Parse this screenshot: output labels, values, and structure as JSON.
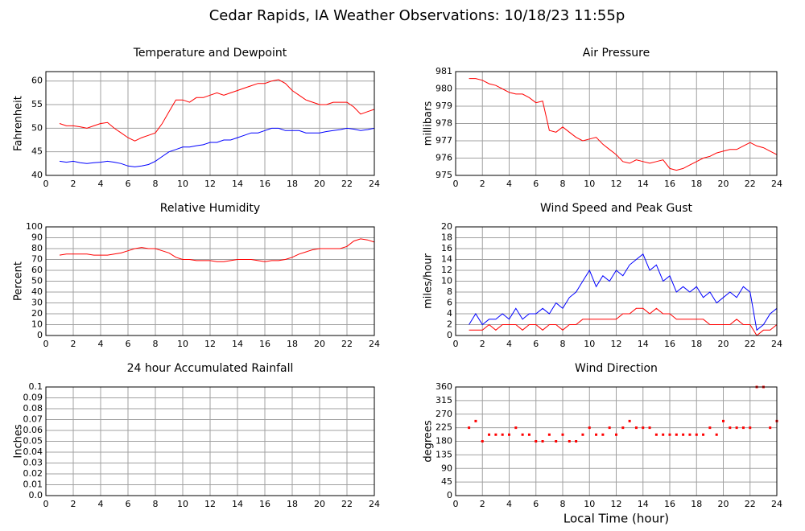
{
  "title": "Cedar Rapids, IA Weather Observations: 10/18/23 11:55p",
  "chart_data": [
    {
      "type": "line",
      "title": "Temperature and Dewpoint",
      "ylabel": "Fahrenheit",
      "x": [
        1,
        1.5,
        2,
        2.5,
        3,
        3.5,
        4,
        4.5,
        5,
        5.5,
        6,
        6.5,
        7,
        7.5,
        8,
        8.5,
        9,
        9.5,
        10,
        10.5,
        11,
        11.5,
        12,
        12.5,
        13,
        13.5,
        14,
        14.5,
        15,
        15.5,
        16,
        16.5,
        17,
        17.5,
        18,
        18.5,
        19,
        19.5,
        20,
        20.5,
        21,
        21.5,
        22,
        22.5,
        23,
        23.5,
        24
      ],
      "series": [
        {
          "color": "#ff0000",
          "values": [
            51,
            50.5,
            50.5,
            50.3,
            50,
            50.5,
            51,
            51.2,
            50,
            49,
            48,
            47.3,
            48,
            48.5,
            49,
            51,
            53.5,
            56,
            56,
            55.5,
            56.5,
            56.5,
            57,
            57.5,
            57,
            57.5,
            58,
            58.5,
            59,
            59.5,
            59.5,
            60,
            60.3,
            59.5,
            58,
            57,
            56,
            55.5,
            55,
            55,
            55.5,
            55.5,
            55.5,
            54.5,
            53,
            53.5,
            54
          ]
        },
        {
          "color": "#0000ff",
          "values": [
            43,
            42.8,
            43,
            42.7,
            42.5,
            42.7,
            42.8,
            43,
            42.8,
            42.5,
            42,
            41.8,
            42,
            42.3,
            43,
            44,
            45,
            45.5,
            46,
            46,
            46.3,
            46.5,
            47,
            47,
            47.5,
            47.5,
            48,
            48.5,
            49,
            49,
            49.5,
            50,
            50,
            49.5,
            49.5,
            49.5,
            49,
            49,
            49,
            49.3,
            49.5,
            49.7,
            50,
            49.8,
            49.5,
            49.7,
            50
          ]
        }
      ],
      "xlim": [
        0,
        24
      ],
      "xticks": [
        0,
        2,
        4,
        6,
        8,
        10,
        12,
        14,
        16,
        18,
        20,
        22,
        24
      ],
      "ylim": [
        40,
        62
      ],
      "yticks": [
        40,
        45,
        50,
        55,
        60
      ],
      "grid": true
    },
    {
      "type": "line",
      "title": "Air Pressure",
      "ylabel": "millibars",
      "x": [
        1,
        1.5,
        2,
        2.5,
        3,
        3.5,
        4,
        4.5,
        5,
        5.5,
        6,
        6.5,
        7,
        7.5,
        8,
        8.5,
        9,
        9.5,
        10,
        10.5,
        11,
        11.5,
        12,
        12.5,
        13,
        13.5,
        14,
        14.5,
        15,
        15.5,
        16,
        16.5,
        17,
        17.5,
        18,
        18.5,
        19,
        19.5,
        20,
        20.5,
        21,
        21.5,
        22,
        22.5,
        23,
        23.5,
        24
      ],
      "series": [
        {
          "color": "#ff0000",
          "values": [
            980.6,
            980.6,
            980.5,
            980.3,
            980.2,
            980,
            979.8,
            979.7,
            979.7,
            979.5,
            979.2,
            979.3,
            977.6,
            977.5,
            977.8,
            977.5,
            977.2,
            977,
            977.1,
            977.2,
            976.8,
            976.5,
            976.2,
            975.8,
            975.7,
            975.9,
            975.8,
            975.7,
            975.8,
            975.9,
            975.4,
            975.3,
            975.4,
            975.6,
            975.8,
            976,
            976.1,
            976.3,
            976.4,
            976.5,
            976.5,
            976.7,
            976.9,
            976.7,
            976.6,
            976.4,
            976.2
          ]
        }
      ],
      "xlim": [
        0,
        24
      ],
      "xticks": [
        0,
        2,
        4,
        6,
        8,
        10,
        12,
        14,
        16,
        18,
        20,
        22,
        24
      ],
      "ylim": [
        975,
        981
      ],
      "yticks": [
        975,
        976,
        977,
        978,
        979,
        980,
        981
      ],
      "grid": true
    },
    {
      "type": "line",
      "title": "Relative Humidity",
      "ylabel": "Percent",
      "x": [
        1,
        1.5,
        2,
        2.5,
        3,
        3.5,
        4,
        4.5,
        5,
        5.5,
        6,
        6.5,
        7,
        7.5,
        8,
        8.5,
        9,
        9.5,
        10,
        10.5,
        11,
        11.5,
        12,
        12.5,
        13,
        13.5,
        14,
        14.5,
        15,
        15.5,
        16,
        16.5,
        17,
        17.5,
        18,
        18.5,
        19,
        19.5,
        20,
        20.5,
        21,
        21.5,
        22,
        22.5,
        23,
        23.5,
        24
      ],
      "series": [
        {
          "color": "#ff0000",
          "values": [
            74,
            75,
            75,
            75,
            75,
            74,
            74,
            74,
            75,
            76,
            78,
            80,
            81,
            80,
            80,
            78,
            76,
            72,
            70,
            70,
            69,
            69,
            69,
            68,
            68,
            69,
            70,
            70,
            70,
            69,
            68,
            69,
            69,
            70,
            72,
            75,
            77,
            79,
            80,
            80,
            80,
            80,
            82,
            87,
            89,
            88,
            86
          ]
        }
      ],
      "xlim": [
        0,
        24
      ],
      "xticks": [
        0,
        2,
        4,
        6,
        8,
        10,
        12,
        14,
        16,
        18,
        20,
        22,
        24
      ],
      "ylim": [
        0,
        100
      ],
      "yticks": [
        0,
        10,
        20,
        30,
        40,
        50,
        60,
        70,
        80,
        90,
        100
      ],
      "grid": true
    },
    {
      "type": "line",
      "title": "Wind Speed and Peak Gust",
      "ylabel": "miles/hour",
      "x": [
        1,
        1.5,
        2,
        2.5,
        3,
        3.5,
        4,
        4.5,
        5,
        5.5,
        6,
        6.5,
        7,
        7.5,
        8,
        8.5,
        9,
        9.5,
        10,
        10.5,
        11,
        11.5,
        12,
        12.5,
        13,
        13.5,
        14,
        14.5,
        15,
        15.5,
        16,
        16.5,
        17,
        17.5,
        18,
        18.5,
        19,
        19.5,
        20,
        20.5,
        21,
        21.5,
        22,
        22.5,
        23,
        23.5,
        24
      ],
      "series": [
        {
          "color": "#0000ff",
          "values": [
            2,
            4,
            2,
            3,
            3,
            4,
            3,
            5,
            3,
            4,
            4,
            5,
            4,
            6,
            5,
            7,
            8,
            10,
            12,
            9,
            11,
            10,
            12,
            11,
            13,
            14,
            15,
            12,
            13,
            10,
            11,
            8,
            9,
            8,
            9,
            7,
            8,
            6,
            7,
            8,
            7,
            9,
            8,
            1,
            2,
            4,
            5
          ]
        },
        {
          "color": "#ff0000",
          "values": [
            1,
            1,
            1,
            2,
            1,
            2,
            2,
            2,
            1,
            2,
            2,
            1,
            2,
            2,
            1,
            2,
            2,
            3,
            3,
            3,
            3,
            3,
            3,
            4,
            4,
            5,
            5,
            4,
            5,
            4,
            4,
            3,
            3,
            3,
            3,
            3,
            2,
            2,
            2,
            2,
            3,
            2,
            2,
            0,
            1,
            1,
            2
          ]
        }
      ],
      "xlim": [
        0,
        24
      ],
      "xticks": [
        0,
        2,
        4,
        6,
        8,
        10,
        12,
        14,
        16,
        18,
        20,
        22,
        24
      ],
      "ylim": [
        0,
        20
      ],
      "yticks": [
        0,
        2,
        4,
        6,
        8,
        10,
        12,
        14,
        16,
        18,
        20
      ],
      "grid": true
    },
    {
      "type": "line",
      "title": "24 hour Accumulated Rainfall",
      "ylabel": "Inches",
      "x": [
        1,
        24
      ],
      "series": [
        {
          "color": "#ff0000",
          "values": [
            0,
            0
          ]
        }
      ],
      "xlim": [
        0,
        24
      ],
      "xticks": [
        0,
        2,
        4,
        6,
        8,
        10,
        12,
        14,
        16,
        18,
        20,
        22,
        24
      ],
      "ylim": [
        0,
        0.1
      ],
      "yticks": [
        {
          "value": 0,
          "label": "0.0"
        },
        0.01,
        0.02,
        0.03,
        0.04,
        0.05,
        0.06,
        0.07,
        0.08,
        0.09,
        0.1
      ],
      "grid": true
    },
    {
      "type": "scatter",
      "title": "Wind Direction",
      "ylabel": "degrees",
      "xlabel": "Local Time (hour)",
      "x": [
        1,
        1.5,
        2,
        2.5,
        3,
        3.5,
        4,
        4.5,
        5,
        5.5,
        6,
        6.5,
        7,
        7.5,
        8,
        8.5,
        9,
        9.5,
        10,
        10.5,
        11,
        11.5,
        12,
        12.5,
        13,
        13.5,
        14,
        14.5,
        15,
        15.5,
        16,
        16.5,
        17,
        17.5,
        18,
        18.5,
        19,
        19.5,
        20,
        20.5,
        21,
        21.5,
        22,
        22.5,
        23,
        23.5,
        24
      ],
      "series": [
        {
          "color": "#ff0000",
          "values": [
            225,
            247,
            180,
            202,
            202,
            202,
            202,
            225,
            202,
            202,
            180,
            180,
            202,
            180,
            202,
            180,
            180,
            202,
            225,
            202,
            202,
            225,
            202,
            225,
            247,
            225,
            225,
            225,
            202,
            202,
            202,
            202,
            202,
            202,
            202,
            202,
            225,
            202,
            247,
            225,
            225,
            225,
            225,
            360,
            360,
            225,
            247
          ]
        }
      ],
      "xlim": [
        0,
        24
      ],
      "xticks": [
        0,
        2,
        4,
        6,
        8,
        10,
        12,
        14,
        16,
        18,
        20,
        22,
        24
      ],
      "ylim": [
        0,
        360
      ],
      "yticks": [
        0,
        45,
        90,
        135,
        180,
        225,
        270,
        315,
        360
      ],
      "grid": true
    }
  ]
}
